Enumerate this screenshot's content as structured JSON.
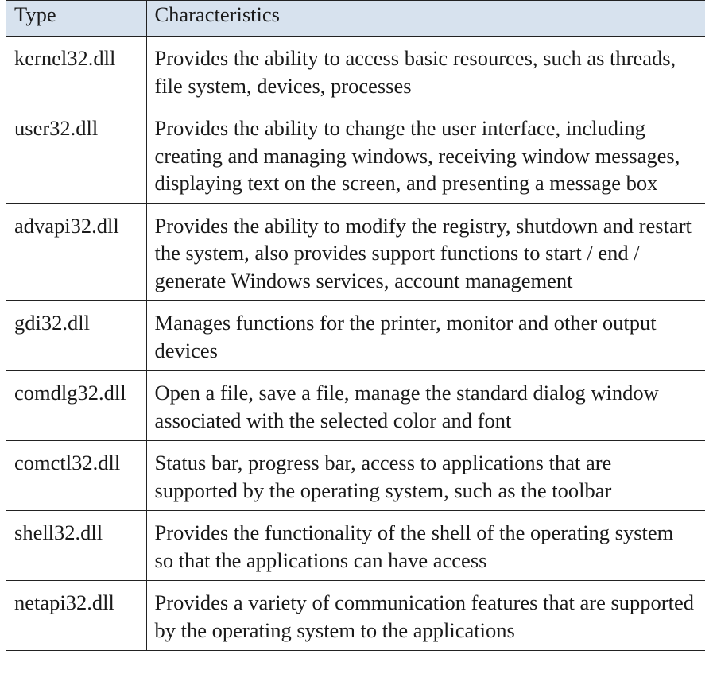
{
  "table": {
    "headers": {
      "type": "Type",
      "characteristics": "Characteristics"
    },
    "rows": [
      {
        "type": "kernel32.dll",
        "characteristics": "Provides the ability to access basic resources, such as threads, file system, devices, processes"
      },
      {
        "type": "user32.dll",
        "characteristics": "Provides the ability to change the user interface, including creating and managing windows, receiving window messages, displaying text on the screen, and presenting a message box"
      },
      {
        "type": "advapi32.dll",
        "characteristics": "Provides the ability to modify the registry, shutdown and restart the system, also provides support functions to start / end / generate Windows services, account management"
      },
      {
        "type": "gdi32.dll",
        "characteristics": "Manages functions for the printer, monitor and other output devices"
      },
      {
        "type": "comdlg32.dll",
        "characteristics": "Open a file, save a file, manage the standard dialog window associated with the selected color and font"
      },
      {
        "type": "comctl32.dll",
        "characteristics": "Status bar, progress bar, access to applications that are supported by the operating system, such as the toolbar"
      },
      {
        "type": "shell32.dll",
        "characteristics": "Provides the functionality of the shell of the operating system so that the applications can have access"
      },
      {
        "type": "netapi32.dll",
        "characteristics": "Provides a variety of communication features that are supported by the operating system to the applications"
      }
    ]
  },
  "colors": {
    "header_background": "#d7e2ee",
    "border": "#222222",
    "text": "#1a1a1a"
  }
}
